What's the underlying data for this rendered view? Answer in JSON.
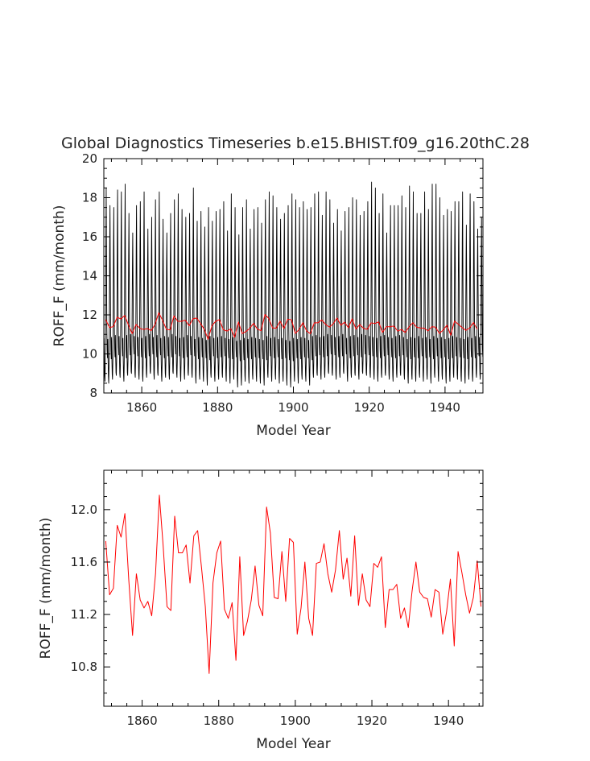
{
  "title": "Global Diagnostics Timeseries b.e15.BHIST.f09_g16.20thC.28",
  "colors": {
    "monthly": "#000000",
    "annual": "#ff0000",
    "axis": "#000000"
  },
  "chart_data": [
    {
      "type": "line",
      "xlabel": "Model Year",
      "ylabel": "ROFF_F (mm/month)",
      "xlim": [
        1850,
        1950
      ],
      "ylim": [
        8,
        20
      ],
      "xticks": [
        1860,
        1880,
        1900,
        1920,
        1940
      ],
      "yticks": [
        8,
        10,
        12,
        14,
        16,
        18,
        20
      ],
      "ytick_labels": [
        "8",
        "10",
        "12",
        "14",
        "16",
        "18",
        "20"
      ],
      "series": [
        {
          "color": "#000000",
          "monthly_cycle": [
            10.9,
            9.8,
            9.0,
            8.8,
            9.6,
            11.8,
            15.5,
            17.9,
            14.2,
            11.4,
            10.3,
            9.9
          ],
          "annual_peak": [
            18.5,
            17.6,
            17.5,
            18.4,
            18.3,
            18.7,
            17.2,
            16.2,
            17.6,
            17.8,
            18.3,
            16.4,
            17.0,
            17.9,
            18.3,
            16.9,
            16.2,
            17.2,
            17.9,
            18.2,
            17.4,
            17.0,
            17.2,
            18.5,
            16.8,
            17.3,
            16.5,
            17.5,
            16.8,
            17.3,
            17.4,
            17.8,
            16.3,
            18.2,
            17.5,
            16.1,
            17.5,
            17.9,
            16.4,
            17.4,
            17.5,
            16.7,
            17.9,
            18.3,
            18.1,
            17.5,
            16.9,
            17.2,
            17.6,
            18.2,
            17.9,
            17.5,
            17.8,
            17.4,
            17.5,
            18.2,
            18.3,
            17.1,
            18.3,
            17.9,
            16.7,
            17.4,
            16.3,
            17.3,
            17.5,
            18.0,
            17.9,
            17.1,
            17.3,
            17.8,
            18.8,
            18.5,
            17.2,
            18.2,
            16.2,
            17.6,
            17.6,
            17.6,
            18.1,
            17.5,
            18.6,
            18.3,
            17.2,
            17.2,
            18.3,
            17.4,
            18.7,
            18.7,
            18.0,
            17.1,
            17.4,
            17.3,
            17.8,
            17.8,
            18.3,
            16.6,
            18.2,
            17.8,
            16.4,
            17.0
          ],
          "annual_trough": [
            8.6,
            8.5,
            8.7,
            8.9,
            8.8,
            8.6,
            8.9,
            9.0,
            8.8,
            8.7,
            8.6,
            8.8,
            9.0,
            8.7,
            8.9,
            8.6,
            8.8,
            8.7,
            9.0,
            8.8,
            8.6,
            8.7,
            8.9,
            8.8,
            8.5,
            8.7,
            8.6,
            8.4,
            8.8,
            8.6,
            8.7,
            8.8,
            8.6,
            8.5,
            8.7,
            8.3,
            8.4,
            8.6,
            8.5,
            8.7,
            8.6,
            8.5,
            8.4,
            8.8,
            8.6,
            8.7,
            8.5,
            8.6,
            8.4,
            8.3,
            8.6,
            8.5,
            8.7,
            8.6,
            8.4,
            8.8,
            8.9,
            8.7,
            8.8,
            9.0,
            8.9,
            8.7,
            8.8,
            9.0,
            8.6,
            8.8,
            8.9,
            8.7,
            9.0,
            8.9,
            8.8,
            8.7,
            8.6,
            8.8,
            8.9,
            8.7,
            8.6,
            8.8,
            8.9,
            8.7,
            8.5,
            8.7,
            8.6,
            8.8,
            8.6,
            8.7,
            8.5,
            8.8,
            8.6,
            8.7,
            8.5,
            8.6,
            8.8,
            8.7,
            8.6,
            8.5,
            8.7,
            8.6,
            8.8,
            8.7
          ]
        },
        {
          "color": "#ff0000",
          "x_start": 1850.5,
          "values": [
            11.76,
            11.35,
            11.4,
            11.88,
            11.79,
            11.97,
            11.47,
            11.04,
            11.51,
            11.31,
            11.25,
            11.3,
            11.19,
            11.51,
            12.11,
            11.72,
            11.26,
            11.23,
            11.95,
            11.67,
            11.67,
            11.73,
            11.44,
            11.8,
            11.84,
            11.56,
            11.26,
            10.75,
            11.44,
            11.67,
            11.76,
            11.24,
            11.17,
            11.29,
            10.85,
            11.64,
            11.04,
            11.15,
            11.31,
            11.57,
            11.27,
            11.19,
            12.02,
            11.82,
            11.33,
            11.32,
            11.68,
            11.3,
            11.78,
            11.75,
            11.05,
            11.25,
            11.6,
            11.17,
            11.04,
            11.59,
            11.6,
            11.74,
            11.51,
            11.37,
            11.54,
            11.84,
            11.47,
            11.63,
            11.34,
            11.8,
            11.27,
            11.51,
            11.31,
            11.26,
            11.59,
            11.56,
            11.64,
            11.1,
            11.39,
            11.39,
            11.43,
            11.17,
            11.25,
            11.1,
            11.38,
            11.6,
            11.37,
            11.33,
            11.32,
            11.18,
            11.39,
            11.37,
            11.05,
            11.22,
            11.47,
            10.96,
            11.68,
            11.52,
            11.35,
            11.21,
            11.33,
            11.61,
            11.26
          ]
        }
      ]
    },
    {
      "type": "line",
      "xlabel": "Model Year",
      "ylabel": "ROFF_F (mm/month)",
      "xlim": [
        1850,
        1949
      ],
      "ylim": [
        10.5,
        12.3
      ],
      "xticks": [
        1860,
        1880,
        1900,
        1920,
        1940
      ],
      "yticks": [
        10.8,
        11.2,
        11.6,
        12.0
      ],
      "ytick_labels": [
        "10.8",
        "11.2",
        "11.6",
        "12.0"
      ],
      "series": [
        {
          "color": "#ff0000",
          "x_start": 1850.5,
          "values": [
            11.76,
            11.35,
            11.4,
            11.88,
            11.79,
            11.97,
            11.47,
            11.04,
            11.51,
            11.31,
            11.25,
            11.3,
            11.19,
            11.51,
            12.11,
            11.72,
            11.26,
            11.23,
            11.95,
            11.67,
            11.67,
            11.73,
            11.44,
            11.8,
            11.84,
            11.56,
            11.26,
            10.75,
            11.44,
            11.67,
            11.76,
            11.24,
            11.17,
            11.29,
            10.85,
            11.64,
            11.04,
            11.15,
            11.31,
            11.57,
            11.27,
            11.19,
            12.02,
            11.82,
            11.33,
            11.32,
            11.68,
            11.3,
            11.78,
            11.75,
            11.05,
            11.25,
            11.6,
            11.17,
            11.04,
            11.59,
            11.6,
            11.74,
            11.51,
            11.37,
            11.54,
            11.84,
            11.47,
            11.63,
            11.34,
            11.8,
            11.27,
            11.51,
            11.31,
            11.26,
            11.59,
            11.56,
            11.64,
            11.1,
            11.39,
            11.39,
            11.43,
            11.17,
            11.25,
            11.1,
            11.38,
            11.6,
            11.37,
            11.33,
            11.32,
            11.18,
            11.39,
            11.37,
            11.05,
            11.22,
            11.47,
            10.96,
            11.68,
            11.52,
            11.35,
            11.21,
            11.33,
            11.61,
            11.26
          ]
        }
      ]
    }
  ]
}
